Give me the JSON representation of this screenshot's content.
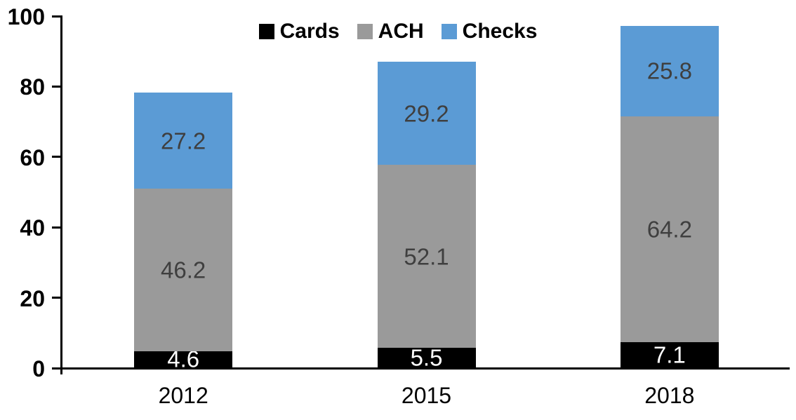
{
  "chart_data": {
    "type": "bar",
    "stacked": true,
    "title": "",
    "categories": [
      "2012",
      "2015",
      "2018"
    ],
    "series": [
      {
        "name": "Cards",
        "color": "#000000",
        "label_color": "#ffffff",
        "values": [
          4.6,
          5.5,
          7.1
        ]
      },
      {
        "name": "ACH",
        "color": "#9a9a9a",
        "label_color": "#3f3f3f",
        "values": [
          46.2,
          52.1,
          64.2
        ]
      },
      {
        "name": "Checks",
        "color": "#5b9bd5",
        "label_color": "#3f3f3f",
        "values": [
          27.2,
          29.2,
          25.8
        ]
      }
    ],
    "xlabel": "",
    "ylabel": "",
    "ylim": [
      0,
      100
    ],
    "yticks": [
      0,
      20,
      40,
      60,
      80,
      100
    ],
    "grid": false,
    "legend_position": "top-center",
    "axis_color": "#000000",
    "background_color": "#ffffff",
    "data_label_decimals": 1
  }
}
